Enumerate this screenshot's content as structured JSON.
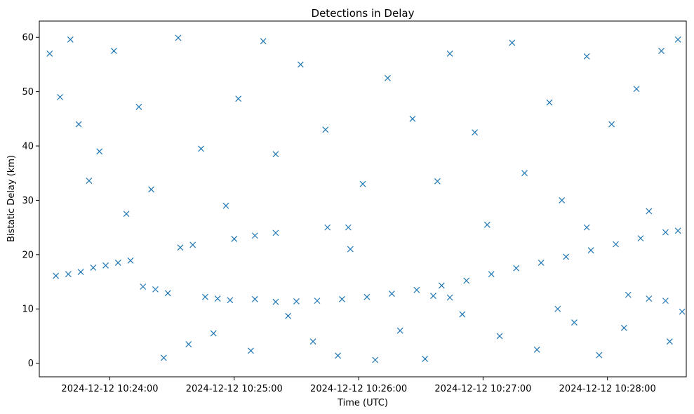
{
  "chart_data": {
    "type": "scatter",
    "title": "Detections in Delay",
    "xlabel": "Time (UTC)",
    "ylabel": "Bistatic Delay (km)",
    "marker": "x",
    "color": "#1f77b4",
    "grid": false,
    "x_ticks": [
      "2024-12-12 10:24:00",
      "2024-12-12 10:25:00",
      "2024-12-12 10:26:00",
      "2024-12-12 10:27:00",
      "2024-12-12 10:28:00"
    ],
    "y_ticks": [
      "0",
      "10",
      "20",
      "30",
      "40",
      "50",
      "60"
    ],
    "xlim": [
      "2024-12-12 10:23:26",
      "2024-12-12 10:28:38"
    ],
    "ylim": [
      -2.5,
      63.0
    ],
    "series": [
      {
        "points": [
          [
            "2024-12-12 10:23:34",
            16.1
          ],
          [
            "2024-12-12 10:23:40",
            16.4
          ],
          [
            "2024-12-12 10:23:46",
            16.8
          ],
          [
            "2024-12-12 10:23:52",
            17.6
          ],
          [
            "2024-12-12 10:23:58",
            18.0
          ],
          [
            "2024-12-12 10:24:04",
            18.5
          ],
          [
            "2024-12-12 10:24:10",
            18.9
          ],
          [
            "2024-12-12 10:24:16",
            14.1
          ],
          [
            "2024-12-12 10:24:22",
            13.6
          ],
          [
            "2024-12-12 10:24:28",
            12.9
          ],
          [
            "2024-12-12 10:24:34",
            21.3
          ],
          [
            "2024-12-12 10:24:40",
            21.8
          ],
          [
            "2024-12-12 10:24:46",
            12.2
          ],
          [
            "2024-12-12 10:24:52",
            11.9
          ],
          [
            "2024-12-12 10:24:58",
            11.6
          ],
          [
            "2024-12-12 10:25:00",
            22.9
          ],
          [
            "2024-12-12 10:25:10",
            23.5
          ],
          [
            "2024-12-12 10:25:20",
            24.0
          ],
          [
            "2024-12-12 10:25:10",
            11.8
          ],
          [
            "2024-12-12 10:25:20",
            11.3
          ],
          [
            "2024-12-12 10:25:30",
            11.4
          ],
          [
            "2024-12-12 10:25:40",
            11.5
          ],
          [
            "2024-12-12 10:25:45",
            25.0
          ],
          [
            "2024-12-12 10:25:55",
            25.0
          ],
          [
            "2024-12-12 10:25:52",
            11.8
          ],
          [
            "2024-12-12 10:26:04",
            12.2
          ],
          [
            "2024-12-12 10:26:16",
            12.8
          ],
          [
            "2024-12-12 10:26:28",
            13.5
          ],
          [
            "2024-12-12 10:26:40",
            14.3
          ],
          [
            "2024-12-12 10:26:52",
            15.2
          ],
          [
            "2024-12-12 10:26:36",
            12.4
          ],
          [
            "2024-12-12 10:26:44",
            12.1
          ],
          [
            "2024-12-12 10:27:04",
            16.4
          ],
          [
            "2024-12-12 10:27:16",
            17.5
          ],
          [
            "2024-12-12 10:27:28",
            18.5
          ],
          [
            "2024-12-12 10:27:40",
            19.6
          ],
          [
            "2024-12-12 10:27:52",
            20.8
          ],
          [
            "2024-12-12 10:27:36",
            10.0
          ],
          [
            "2024-12-12 10:27:50",
            25.0
          ],
          [
            "2024-12-12 10:28:04",
            21.9
          ],
          [
            "2024-12-12 10:28:16",
            23.0
          ],
          [
            "2024-12-12 10:28:28",
            24.1
          ],
          [
            "2024-12-12 10:28:34",
            24.4
          ],
          [
            "2024-12-12 10:28:10",
            12.6
          ],
          [
            "2024-12-12 10:28:20",
            11.9
          ],
          [
            "2024-12-12 10:28:28",
            11.5
          ],
          [
            "2024-12-12 10:23:31",
            57.0
          ],
          [
            "2024-12-12 10:23:36",
            49.0
          ],
          [
            "2024-12-12 10:23:41",
            59.6
          ],
          [
            "2024-12-12 10:23:45",
            44.0
          ],
          [
            "2024-12-12 10:23:50",
            33.6
          ],
          [
            "2024-12-12 10:23:55",
            39.0
          ],
          [
            "2024-12-12 10:24:02",
            57.5
          ],
          [
            "2024-12-12 10:24:08",
            27.5
          ],
          [
            "2024-12-12 10:24:14",
            47.2
          ],
          [
            "2024-12-12 10:24:20",
            32.0
          ],
          [
            "2024-12-12 10:24:26",
            1.0
          ],
          [
            "2024-12-12 10:24:33",
            59.9
          ],
          [
            "2024-12-12 10:24:38",
            3.5
          ],
          [
            "2024-12-12 10:24:44",
            39.5
          ],
          [
            "2024-12-12 10:24:50",
            5.5
          ],
          [
            "2024-12-12 10:24:56",
            29.0
          ],
          [
            "2024-12-12 10:25:02",
            48.7
          ],
          [
            "2024-12-12 10:25:08",
            2.3
          ],
          [
            "2024-12-12 10:25:14",
            59.3
          ],
          [
            "2024-12-12 10:25:20",
            38.5
          ],
          [
            "2024-12-12 10:25:26",
            8.7
          ],
          [
            "2024-12-12 10:25:32",
            55.0
          ],
          [
            "2024-12-12 10:25:38",
            4.0
          ],
          [
            "2024-12-12 10:25:44",
            43.0
          ],
          [
            "2024-12-12 10:25:50",
            1.4
          ],
          [
            "2024-12-12 10:25:56",
            21.0
          ],
          [
            "2024-12-12 10:26:02",
            33.0
          ],
          [
            "2024-12-12 10:26:08",
            0.6
          ],
          [
            "2024-12-12 10:26:14",
            52.5
          ],
          [
            "2024-12-12 10:26:20",
            6.0
          ],
          [
            "2024-12-12 10:26:26",
            45.0
          ],
          [
            "2024-12-12 10:26:32",
            0.8
          ],
          [
            "2024-12-12 10:26:38",
            33.5
          ],
          [
            "2024-12-12 10:26:44",
            57.0
          ],
          [
            "2024-12-12 10:26:50",
            9.0
          ],
          [
            "2024-12-12 10:26:56",
            42.5
          ],
          [
            "2024-12-12 10:27:02",
            25.5
          ],
          [
            "2024-12-12 10:27:08",
            5.0
          ],
          [
            "2024-12-12 10:27:14",
            59.0
          ],
          [
            "2024-12-12 10:27:20",
            35.0
          ],
          [
            "2024-12-12 10:27:26",
            2.5
          ],
          [
            "2024-12-12 10:27:32",
            48.0
          ],
          [
            "2024-12-12 10:27:38",
            30.0
          ],
          [
            "2024-12-12 10:27:44",
            7.5
          ],
          [
            "2024-12-12 10:27:50",
            56.5
          ],
          [
            "2024-12-12 10:27:56",
            1.5
          ],
          [
            "2024-12-12 10:28:02",
            44.0
          ],
          [
            "2024-12-12 10:28:08",
            6.5
          ],
          [
            "2024-12-12 10:28:14",
            50.5
          ],
          [
            "2024-12-12 10:28:20",
            28.0
          ],
          [
            "2024-12-12 10:28:26",
            57.5
          ],
          [
            "2024-12-12 10:28:30",
            4.0
          ],
          [
            "2024-12-12 10:28:34",
            59.6
          ],
          [
            "2024-12-12 10:28:36",
            9.5
          ]
        ]
      }
    ]
  }
}
